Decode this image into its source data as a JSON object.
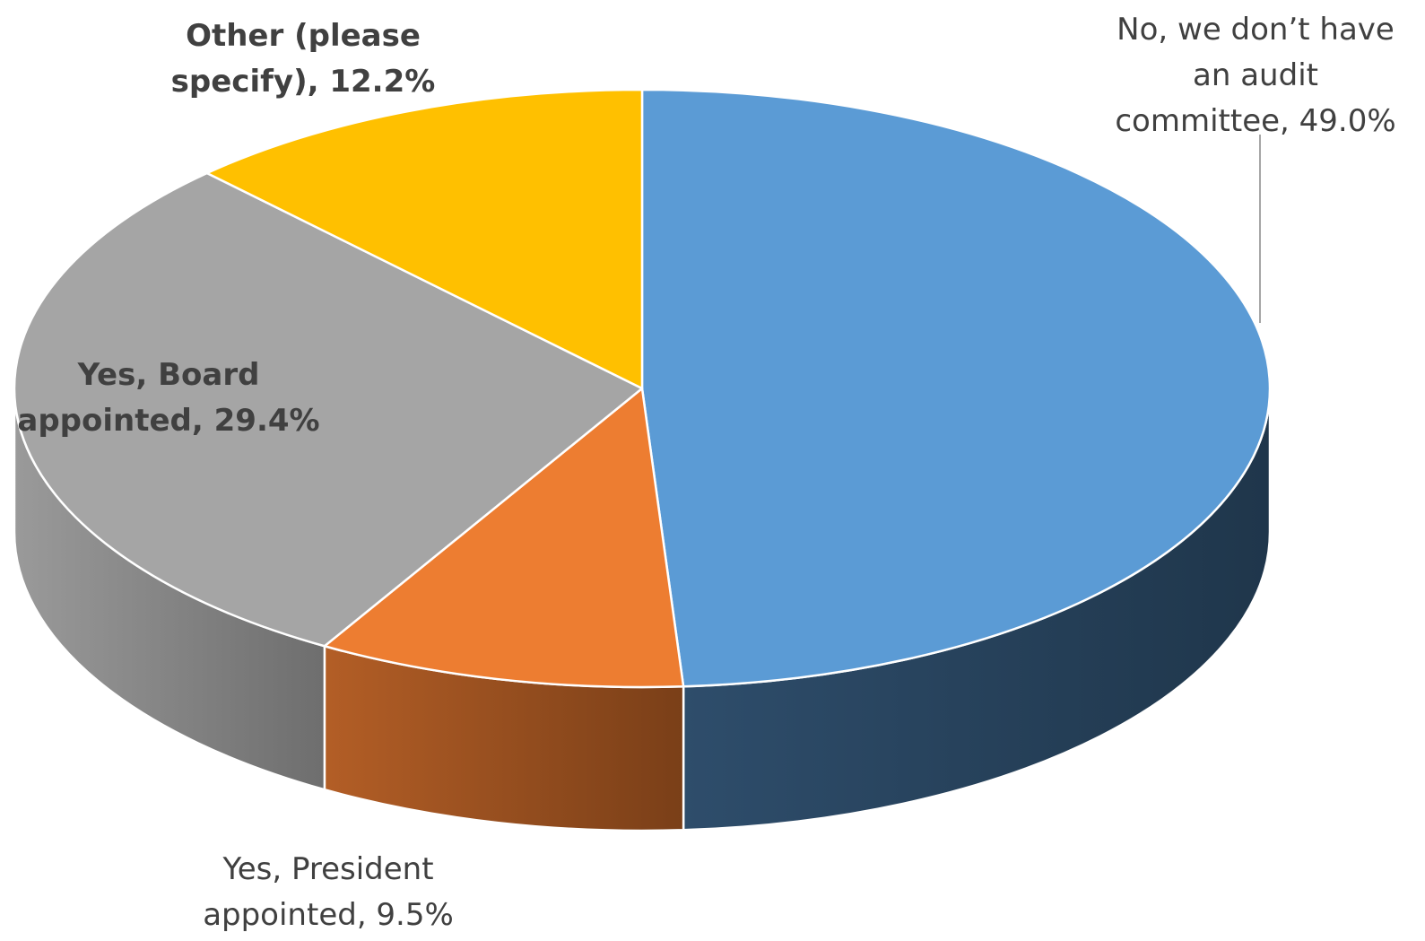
{
  "chart_data": {
    "type": "pie",
    "title": "",
    "style": "3d",
    "categories": [
      "No, we don’t have an audit committee",
      "Yes, President appointed",
      "Yes, Board appointed",
      "Other (please specify)"
    ],
    "values": [
      49.0,
      9.5,
      29.4,
      12.2
    ],
    "value_suffix": "%",
    "colors": [
      "#5B9BD5",
      "#ED7D31",
      "#A5A5A5",
      "#FFC000"
    ],
    "side_colors": [
      "#243E56",
      "#8E4A1D",
      "#7E7E7E",
      "#B38600"
    ],
    "data_labels": [
      {
        "lines": [
          "No, we don’t have",
          "an audit",
          "committee, 49.0%"
        ],
        "weight": "normal",
        "color": "#404040",
        "leader": true
      },
      {
        "lines": [
          "Yes, President",
          "appointed, 9.5%"
        ],
        "weight": "normal",
        "color": "#404040",
        "leader": false
      },
      {
        "lines": [
          "Yes, Board",
          "appointed, 29.4%"
        ],
        "weight": "bold",
        "color": "#404040",
        "leader": false
      },
      {
        "lines": [
          "Other (please",
          "specify), 12.2%"
        ],
        "weight": "bold",
        "color": "#404040",
        "leader": false
      }
    ]
  }
}
